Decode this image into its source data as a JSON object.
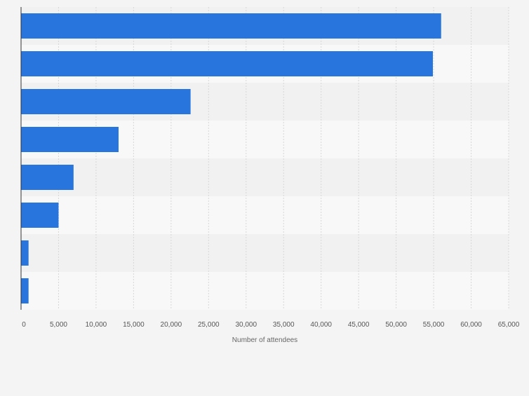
{
  "chart_data": {
    "type": "bar",
    "orientation": "horizontal",
    "categories": [
      "",
      "",
      "",
      "",
      "",
      "",
      "",
      ""
    ],
    "values": [
      56000,
      54900,
      22600,
      13000,
      7000,
      5000,
      1000,
      1000
    ],
    "xlabel": "Number of attendees",
    "xlim": [
      0,
      65000
    ],
    "xticks": [
      0,
      5000,
      10000,
      15000,
      20000,
      25000,
      30000,
      35000,
      40000,
      45000,
      50000,
      55000,
      60000,
      65000
    ],
    "xtick_labels": [
      "0",
      "5,000",
      "10,000",
      "15,000",
      "20,000",
      "25,000",
      "30,000",
      "35,000",
      "40,000",
      "45,000",
      "50,000",
      "55,000",
      "60,000",
      "65,000"
    ],
    "grid": true,
    "legend": "none",
    "colors": {
      "bar": "#2876dd",
      "band_dark": "#f1f1f1",
      "band_light": "#f8f8f8",
      "grid": "#d7d7d7",
      "axis": "#333333",
      "tick_text": "#555555",
      "label_text": "#666666"
    }
  }
}
